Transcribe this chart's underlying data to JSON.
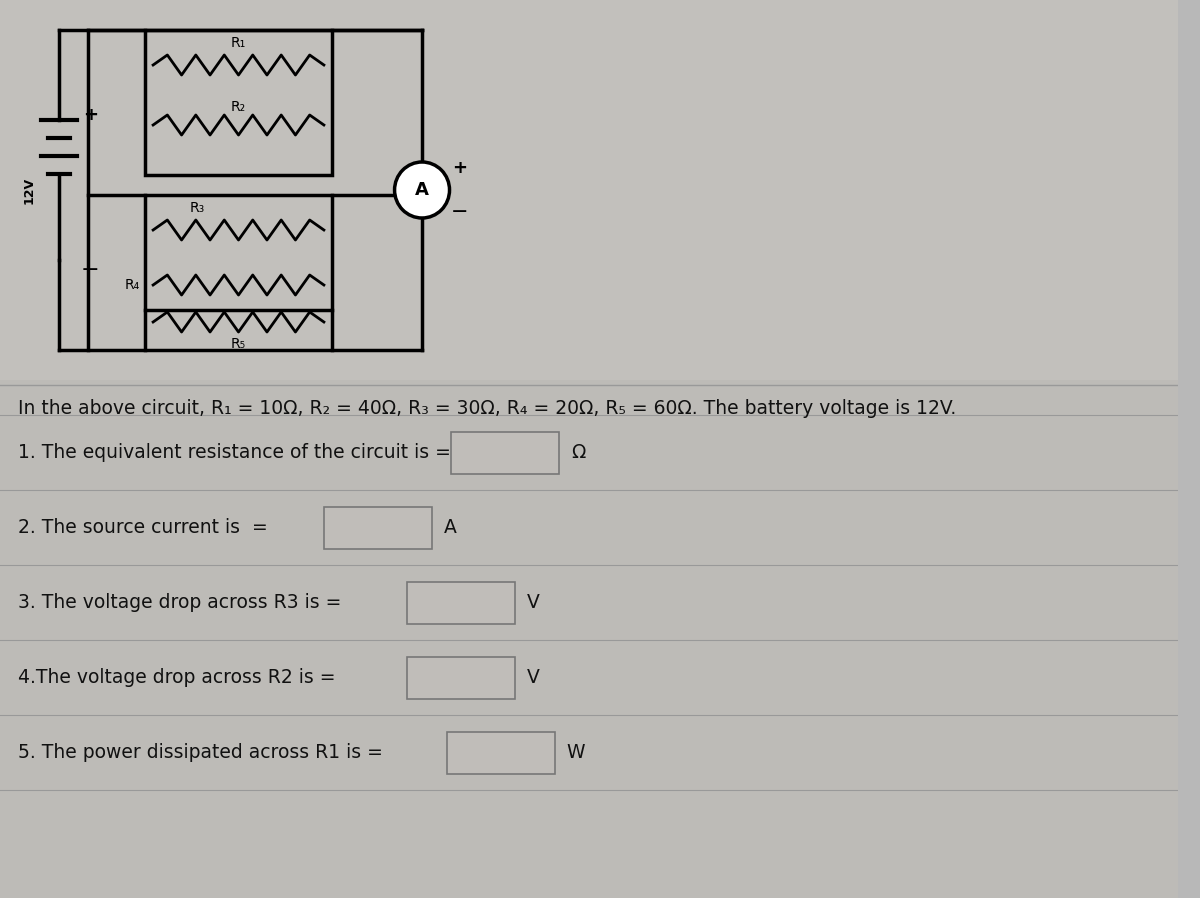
{
  "bg_color": "#b8b8b8",
  "bg_top_color": "#c0c0c0",
  "bg_mid_color": "#c8c4c0",
  "text_color": "#111111",
  "wire_color": "#111111",
  "box_fill": "#c8c4c0",
  "box_edge": "#666666",
  "divider_color": "#999999",
  "description": "In the above circuit, R₁ = 10Ω, R₂ = 40Ω, R₃ = 30Ω, R₄ = 20Ω, R₅ = 60Ω. The battery voltage is 12V.",
  "q1_text": "1. The equivalent resistance of the circuit is =",
  "q2_text": "2. The source current is  =",
  "q3_text": "3. The voltage drop across R3 is =",
  "q4_text": "4.The voltage drop across R2 is =",
  "q5_text": "5. The power dissipated across R1 is =",
  "q1_unit": "Ω",
  "q2_unit": "A",
  "q3_unit": "V",
  "q4_unit": "V",
  "q5_unit": "W",
  "font_size_desc": 13.5,
  "font_size_q": 13.5,
  "font_bold_q": false
}
